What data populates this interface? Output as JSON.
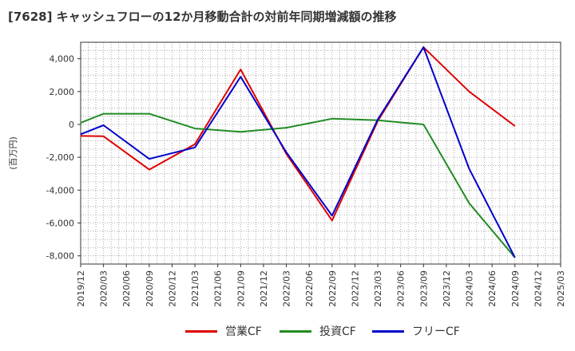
{
  "chart_data": {
    "type": "line",
    "title": "[7628]  キャッシュフローの12か月移動合計の対前年同期増減額の推移",
    "ylabel": "(百万円)",
    "xlabel": "",
    "ylim": [
      -8500,
      5000
    ],
    "yticks": [
      4000,
      2000,
      0,
      -2000,
      -4000,
      -6000,
      -8000
    ],
    "ytick_labels": [
      "4,000",
      "2,000",
      "0",
      "-2,000",
      "-4,000",
      "-6,000",
      "-8,000"
    ],
    "categories": [
      "2019/12",
      "2020/03",
      "2020/06",
      "2020/09",
      "2020/12",
      "2021/03",
      "2021/06",
      "2021/09",
      "2021/12",
      "2022/03",
      "2022/06",
      "2022/09",
      "2022/12",
      "2023/03",
      "2023/06",
      "2023/09",
      "2023/12",
      "2024/03",
      "2024/06",
      "2024/09",
      "2024/12",
      "2025/03"
    ],
    "series": [
      {
        "name": "営業CF",
        "color": "#dd0000",
        "values": [
          -700,
          -720,
          null,
          -2750,
          null,
          -1200,
          null,
          3350,
          null,
          -1800,
          null,
          -5850,
          null,
          200,
          null,
          4700,
          null,
          2000,
          null,
          -100,
          null,
          null
        ]
      },
      {
        "name": "投資CF",
        "color": "#228b22",
        "values": [
          100,
          650,
          null,
          650,
          null,
          -250,
          null,
          -450,
          null,
          -200,
          null,
          350,
          null,
          250,
          null,
          0,
          null,
          -4800,
          null,
          -8100,
          null,
          null
        ]
      },
      {
        "name": "フリーCF",
        "color": "#0000cc",
        "values": [
          -600,
          -50,
          null,
          -2100,
          null,
          -1400,
          null,
          2900,
          null,
          -1700,
          null,
          -5550,
          null,
          300,
          null,
          4700,
          null,
          -2700,
          null,
          -8100,
          null,
          null
        ]
      }
    ],
    "grid": true,
    "legend": "bottom-center"
  }
}
